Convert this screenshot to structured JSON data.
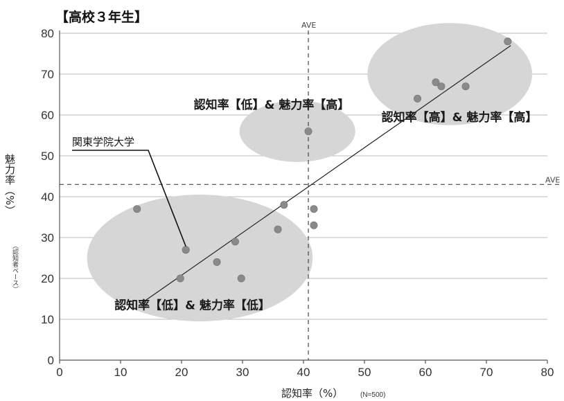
{
  "chart_data": {
    "type": "scatter",
    "title": "【高校３年生】",
    "xlabel": "認知率（%）",
    "xlabel_note": "(N=500)",
    "ylabel": "魅力率（%）",
    "ylabel_note": "（認知者ベース）",
    "xlim": [
      0,
      80
    ],
    "ylim": [
      0,
      80
    ],
    "xticks": [
      0,
      10,
      20,
      30,
      40,
      50,
      60,
      70,
      80
    ],
    "yticks": [
      0,
      10,
      20,
      30,
      40,
      50,
      60,
      70,
      80
    ],
    "grid": "horizontal",
    "points": [
      {
        "x": 12.7,
        "y": 37
      },
      {
        "x": 19.8,
        "y": 20
      },
      {
        "x": 20.7,
        "y": 27
      },
      {
        "x": 25.8,
        "y": 24
      },
      {
        "x": 28.8,
        "y": 29
      },
      {
        "x": 29.8,
        "y": 20
      },
      {
        "x": 35.8,
        "y": 32
      },
      {
        "x": 36.8,
        "y": 38
      },
      {
        "x": 40.8,
        "y": 56
      },
      {
        "x": 41.7,
        "y": 37
      },
      {
        "x": 41.7,
        "y": 33
      },
      {
        "x": 58.7,
        "y": 64
      },
      {
        "x": 61.7,
        "y": 68
      },
      {
        "x": 62.6,
        "y": 67
      },
      {
        "x": 66.6,
        "y": 67
      },
      {
        "x": 73.5,
        "y": 78
      }
    ],
    "trend_line": {
      "from": {
        "x": 13.5,
        "y": 14
      },
      "to": {
        "x": 74,
        "y": 77
      }
    },
    "ave_x": {
      "value": 40.8,
      "label": "AVE"
    },
    "ave_y": {
      "value": 43,
      "label": "AVE"
    },
    "clusters": [
      {
        "cx": 23,
        "cy": 25,
        "rx": 18.5,
        "ry": 15.5,
        "label": "認知率【低】& 魅力率【低】",
        "label_x": 9,
        "label_y": 12.5
      },
      {
        "cx": 39,
        "cy": 56,
        "rx": 9.5,
        "ry": 7.5,
        "label": "認知率【低】& 魅力率【高】",
        "label_x": 22,
        "label_y": 61.5
      },
      {
        "cx": 64,
        "cy": 70,
        "rx": 13.5,
        "ry": 12.5,
        "label": "認知率【高】& 魅力率【高】",
        "label_x": 52.8,
        "label_y": 58.5
      }
    ],
    "callout": {
      "text": "関東学院大学",
      "x": 20.7,
      "y": 27
    }
  }
}
